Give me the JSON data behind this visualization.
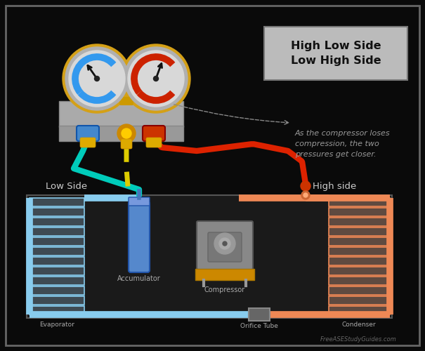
{
  "bg_color": "#0a0a0a",
  "border_color": "#666666",
  "title_text": "High Low Side\nLow High Side",
  "title_bg": "#bbbbbb",
  "title_color": "#111111",
  "annotation_text": "As the compressor loses\ncompression, the two\npressures get closer.",
  "annotation_color": "#999999",
  "watermark": "FreeASEStudyGuides.com",
  "low_side_label": "Low Side",
  "high_side_label": "High side",
  "evaporator_label": "Evaporator",
  "accumulator_label": "Accumulator",
  "compressor_label": "Compressor",
  "orifice_label": "Orifice Tube",
  "condenser_label": "Condenser",
  "gauge_body_color": "#b0b0b0",
  "gauge_rim_color": "#d4a017",
  "low_gauge_arc_color": "#3399ee",
  "high_gauge_arc_color": "#cc2200",
  "hose_blue_color": "#00ccbb",
  "hose_red_color": "#dd2200",
  "hose_yellow_color": "#ddcc00",
  "evap_color": "#88ccee",
  "evap_fill": "#aaddff",
  "condenser_color": "#ee8855",
  "condenser_fill": "#ffbb99",
  "accumulator_body": "#5588cc",
  "accumulator_top": "#7799dd",
  "compressor_body": "#888888",
  "sys_box_color": "#1a1a1a",
  "low_label_color": "#cccccc",
  "high_label_color": "#cccccc",
  "pipe_orange": "#ee8855",
  "pipe_blue": "#88ccee",
  "orifice_color": "#666666"
}
